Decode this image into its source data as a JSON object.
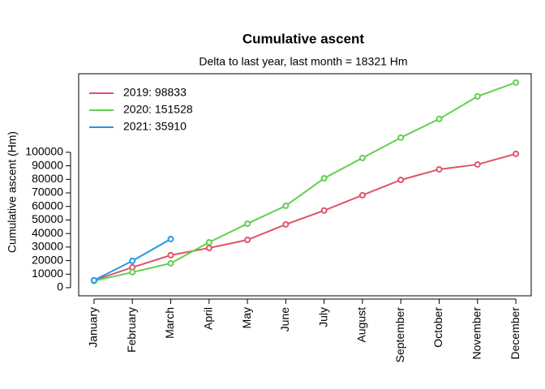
{
  "chart_data": {
    "type": "line",
    "title": "Cumulative ascent",
    "subtitle": "Delta to last year, last month = 18321 Hm",
    "y_label": "Cumulative ascent (Hm)",
    "categories": [
      "January",
      "February",
      "March",
      "April",
      "May",
      "June",
      "July",
      "August",
      "September",
      "October",
      "November",
      "December"
    ],
    "series": [
      {
        "name": "2019: 98833",
        "color": "#DF536B",
        "values": [
          5400,
          15000,
          24000,
          29300,
          35300,
          46700,
          57000,
          68300,
          79600,
          87400,
          91000,
          98833
        ]
      },
      {
        "name": "2020: 151528",
        "color": "#61D04F",
        "values": [
          5000,
          11400,
          18000,
          33500,
          47300,
          60500,
          80800,
          95800,
          110800,
          124600,
          141300,
          151528
        ]
      },
      {
        "name": "2021: 35910",
        "color": "#2297E6",
        "values": [
          5400,
          19800,
          35910,
          null,
          null,
          null,
          null,
          null,
          null,
          null,
          null,
          null
        ]
      }
    ],
    "ylim": [
      -6000,
      158000
    ],
    "yticks": [
      0,
      10000,
      20000,
      30000,
      40000,
      50000,
      60000,
      70000,
      80000,
      90000,
      100000
    ],
    "legend": "top-left",
    "grid": false
  }
}
